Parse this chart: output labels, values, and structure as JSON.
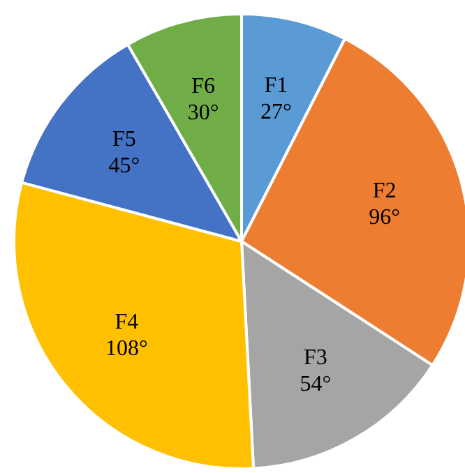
{
  "chart_data": {
    "type": "pie",
    "categories": [
      "F1",
      "F2",
      "F3",
      "F4",
      "F5",
      "F6"
    ],
    "values": [
      27,
      96,
      54,
      108,
      45,
      30
    ],
    "colors": [
      "#5b9bd5",
      "#ed7d31",
      "#a5a5a5",
      "#ffc000",
      "#4472c4",
      "#70ad47"
    ],
    "value_labels": [
      "27°",
      "96°",
      "54°",
      "108°",
      "45°",
      "30°"
    ],
    "legend": false
  }
}
